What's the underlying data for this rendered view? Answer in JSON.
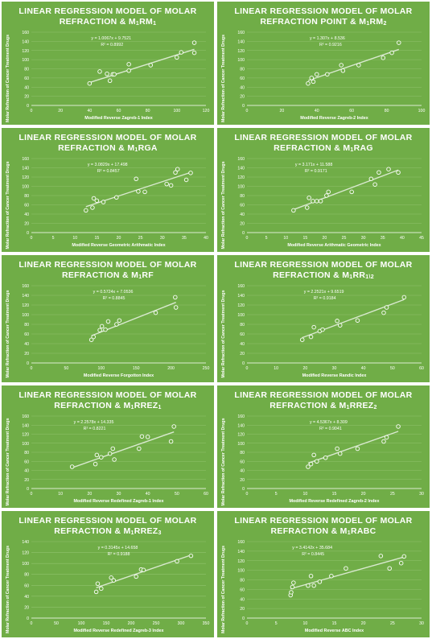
{
  "chart_data": [
    {
      "type": "scatter",
      "title": "LINEAR REGRESSION MODEL OF MOLAR REFRACTION & M₁RM₁",
      "title_lines": [
        [
          "LINEAR REGRESSION MODEL OF MOLAR",
          ""
        ],
        [
          "REFRACTION & M",
          "1",
          "RM",
          "1"
        ]
      ],
      "xlabel": "Modified Reverse Zagreb-1 Index",
      "ylabel": "Molar Refraction of Cancer Treatment Drugs",
      "xlim": [
        0,
        120
      ],
      "xticks": [
        0,
        20,
        40,
        60,
        80,
        100,
        120
      ],
      "ylim": [
        0,
        160
      ],
      "yticks": [
        0,
        20,
        40,
        60,
        80,
        100,
        120,
        140,
        160
      ],
      "equation": "y = 1.0067x + 9.7521",
      "r2": "R² = 0.8992",
      "slope": 1.0067,
      "intercept": 9.7521,
      "grid": true,
      "x": [
        40,
        47,
        52,
        54,
        56,
        57,
        67,
        67,
        82,
        100,
        103,
        112,
        112
      ],
      "y": [
        48,
        74,
        69,
        54,
        68,
        68,
        90,
        76,
        88,
        105,
        116,
        137,
        115
      ]
    },
    {
      "type": "scatter",
      "title": "LINEAR REGRESSION MODEL OF MOLAR REFRACTION POINT & M₁RM₂",
      "title_lines": [
        [
          "LINEAR REGRESSION MODEL OF MOLAR"
        ],
        [
          "REFRACTION POINT & M",
          "1",
          "RM",
          "2"
        ]
      ],
      "xlabel": "Modified Reverse Zagreb-2 Index",
      "ylabel": "Molar Refraction of Cancer Treatment Drugs",
      "xlim": [
        0,
        100
      ],
      "xticks": [
        0,
        20,
        40,
        60,
        80,
        100
      ],
      "ylim": [
        0,
        160
      ],
      "yticks": [
        0,
        20,
        40,
        60,
        80,
        100,
        120,
        140,
        160
      ],
      "equation": "y = 1.307x + 8.536",
      "r2": "R² = 0.9216",
      "slope": 1.307,
      "intercept": 8.536,
      "grid": true,
      "x": [
        35,
        37,
        38,
        40,
        46,
        54,
        55,
        64,
        78,
        83,
        87
      ],
      "y": [
        48,
        60,
        52,
        68,
        68,
        88,
        76,
        88,
        104,
        115,
        137
      ]
    },
    {
      "type": "scatter",
      "title": "LINEAR REGRESSION MODEL OF MOLAR REFRACTION & M₁RGA",
      "title_lines": [
        [
          "LINEAR REGRESSION MODEL OF MOLAR"
        ],
        [
          "REFRACTION & M",
          "1",
          "RGA"
        ]
      ],
      "xlabel": "Modified Reverse Geometric Arithmatic Index",
      "ylabel": "Molar Refraction of Cancer Treatment Drugs",
      "xlim": [
        0,
        40
      ],
      "xticks": [
        0,
        5,
        10,
        15,
        20,
        25,
        30,
        35,
        40
      ],
      "ylim": [
        0,
        160
      ],
      "yticks": [
        0,
        20,
        40,
        60,
        80,
        100,
        120,
        140,
        160
      ],
      "equation": "y = 3.0829x + 17.498",
      "r2": "R² = 0.8457",
      "slope": 3.0829,
      "intercept": 17.498,
      "grid": true,
      "x": [
        12.5,
        14,
        14.3,
        15,
        16.5,
        19.5,
        24,
        24.5,
        26,
        31,
        32,
        33,
        33.5,
        35.5,
        36.5
      ],
      "y": [
        48,
        54,
        74,
        69,
        66,
        76,
        116,
        89,
        88,
        105,
        102,
        130,
        137,
        114,
        129
      ]
    },
    {
      "type": "scatter",
      "title": "LINEAR REGRESSION MODEL OF MOLAR REFRACTION & M₁RAG",
      "title_lines": [
        [
          "LINEAR REGRESSION MODEL OF MOLAR"
        ],
        [
          "REFRACTION & M",
          "1",
          "RAG"
        ]
      ],
      "xlabel": "Modified Reverse  Arithmatic Geometric Index",
      "ylabel": "Molar Refraction of Cancer Treatment Drugs",
      "xlim": [
        0,
        45
      ],
      "xticks": [
        0,
        5,
        10,
        15,
        20,
        25,
        30,
        35,
        40,
        45
      ],
      "ylim": [
        0,
        160
      ],
      "yticks": [
        0,
        20,
        40,
        60,
        80,
        100,
        120,
        140,
        160
      ],
      "equation": "y = 3.171x + 11.588",
      "r2": "R² = 0.9171",
      "slope": 3.171,
      "intercept": 11.588,
      "grid": true,
      "x": [
        12,
        15.5,
        16,
        17,
        18,
        19,
        20.5,
        21,
        27,
        32,
        33,
        34,
        36.5,
        39
      ],
      "y": [
        48,
        54,
        75,
        68,
        68,
        68,
        80,
        88,
        88,
        116,
        104,
        130,
        137,
        130
      ]
    },
    {
      "type": "scatter",
      "title": "LINEAR REGRESSION MODEL OF MOLAR REFRACTION & M₁RF",
      "title_lines": [
        [
          "LINEAR REGRESSION MODEL OF MOLAR"
        ],
        [
          "REFRACTION & M",
          "1",
          "RF"
        ]
      ],
      "xlabel": "Modified Reverse Forgotton Index",
      "ylabel": "Molar Refraction of Cancer Treatment Drugs",
      "xlim": [
        0,
        250
      ],
      "xticks": [
        0,
        50,
        100,
        150,
        200,
        250
      ],
      "ylim": [
        0,
        160
      ],
      "yticks": [
        0,
        20,
        40,
        60,
        80,
        100,
        120,
        140,
        160
      ],
      "equation": "y = 0.5724x + 7.0536",
      "r2": "R² = 0.8845",
      "slope": 0.5724,
      "intercept": 7.0536,
      "grid": true,
      "x": [
        86,
        89,
        98,
        101,
        106,
        110,
        122,
        126,
        178,
        206,
        207
      ],
      "y": [
        48,
        54,
        68,
        76,
        69,
        86,
        80,
        88,
        104,
        136,
        115
      ]
    },
    {
      "type": "scatter",
      "title": "LINEAR REGRESSION MODEL OF MOLAR REFRACTION & M₁RR1\\2",
      "title_lines": [
        [
          "LINEAR REGRESSION MODEL OF MOLAR"
        ],
        [
          "REFRACTION & M",
          "1",
          "RR",
          "1\\2"
        ]
      ],
      "xlabel": "Modified Reverse Randic Index",
      "ylabel": "Molar Refraction of Cancer Treatment Drugs",
      "xlim": [
        0,
        60
      ],
      "xticks": [
        0,
        10,
        20,
        30,
        40,
        50,
        60
      ],
      "ylim": [
        0,
        160
      ],
      "yticks": [
        0,
        20,
        40,
        60,
        80,
        100,
        120,
        140,
        160
      ],
      "equation": "y = 2.2521x + 9.6519",
      "r2": "R² = 0.9184",
      "slope": 2.2521,
      "intercept": 9.6519,
      "grid": true,
      "x": [
        19,
        22,
        23,
        25,
        26,
        31,
        32,
        38,
        47,
        48,
        54
      ],
      "y": [
        48,
        54,
        74,
        66,
        69,
        87,
        78,
        88,
        104,
        115,
        136
      ]
    },
    {
      "type": "scatter",
      "title": "LINEAR REGRESSION MODEL OF MOLAR REFRACTION & M₁RREZ₁",
      "title_lines": [
        [
          "LINEAR REGRESSION MODEL OF MOLAR"
        ],
        [
          "REFRACTION & M",
          "1",
          "RREZ",
          "1"
        ]
      ],
      "xlabel": "Modified Reverse Redefined Zagreb-1 Index",
      "ylabel": "Molar Refraction of Cancer Treatment Drugs",
      "xlim": [
        0,
        60
      ],
      "xticks": [
        0,
        10,
        20,
        30,
        40,
        50,
        60
      ],
      "ylim": [
        0,
        160
      ],
      "yticks": [
        0,
        20,
        40,
        60,
        80,
        100,
        120,
        140,
        160
      ],
      "equation": "y = 2.2578x + 14.335",
      "r2": "R² = 0.8221",
      "slope": 2.2578,
      "intercept": 14.335,
      "grid": true,
      "x": [
        14,
        22,
        22.5,
        24,
        27,
        28,
        28.5,
        37,
        38,
        40,
        48,
        49
      ],
      "y": [
        48,
        54,
        74,
        69,
        77,
        88,
        64,
        88,
        115,
        114,
        104,
        137
      ]
    },
    {
      "type": "scatter",
      "title": "LINEAR REGRESSION MODEL OF MOLAR REFRACTION & M₁RREZ₂",
      "title_lines": [
        [
          "LINEAR REGRESSION MODEL OF MOLAR"
        ],
        [
          "REFRACTION & M",
          "1",
          "RREZ",
          "2"
        ]
      ],
      "xlabel": "Modified Reverse Redefined Zagreb-2 Index",
      "ylabel": "Molar Refraction of Cancer Treatment Drugs",
      "xlim": [
        0,
        30
      ],
      "xticks": [
        0,
        5,
        10,
        15,
        20,
        25,
        30
      ],
      "ylim": [
        0,
        160
      ],
      "yticks": [
        0,
        20,
        40,
        60,
        80,
        100,
        120,
        140,
        160
      ],
      "equation": "y = 4.5367x + 8.309",
      "r2": "R² = 0.9041",
      "slope": 4.5367,
      "intercept": 8.309,
      "grid": true,
      "x": [
        10.5,
        11,
        11.5,
        12,
        13.5,
        15.5,
        16,
        19,
        23.5,
        24,
        26
      ],
      "y": [
        48,
        54,
        74,
        60,
        68,
        88,
        77,
        88,
        104,
        113,
        137
      ]
    },
    {
      "type": "scatter",
      "title": "LINEAR REGRESSION MODEL OF MOLAR REFRACTION & M₁RREZ₃",
      "title_lines": [
        [
          "LINEAR REGRESSION MODEL OF MOLAR"
        ],
        [
          "REFRACTION & M",
          "1",
          "RREZ",
          "3"
        ]
      ],
      "xlabel": "Modified Reverse Redefined Zagreb-3 Index",
      "ylabel": "Molar Refraction of Cancer Treatment Drugs",
      "xlim": [
        0,
        350
      ],
      "xticks": [
        0,
        50,
        100,
        150,
        200,
        250,
        300,
        350
      ],
      "ylim": [
        0,
        140
      ],
      "yticks": [
        0,
        20,
        40,
        60,
        80,
        100,
        120,
        140
      ],
      "equation": "y = 0.3145x + 14.658",
      "r2": "R² = 0.9188",
      "slope": 0.3145,
      "intercept": 14.658,
      "grid": true,
      "x": [
        130,
        133,
        140,
        160,
        165,
        210,
        220,
        225,
        292,
        320
      ],
      "y": [
        48,
        63,
        54,
        74,
        69,
        76,
        89,
        88,
        104,
        114
      ]
    },
    {
      "type": "scatter",
      "title": "LINEAR REGRESSION MODEL OF MOLAR REFRACTION & M₁RABC",
      "title_lines": [
        [
          "LINEAR REGRESSION MODEL OF MOLAR"
        ],
        [
          "REFRACTION & M",
          "1",
          "RABC"
        ]
      ],
      "xlabel": "Modified Reverse ABC Index",
      "ylabel": "Molar Refraction of Cancer Treatment Drugs",
      "xlim": [
        0,
        30
      ],
      "xticks": [
        0,
        5,
        10,
        15,
        20,
        25,
        30
      ],
      "ylim": [
        0,
        160
      ],
      "yticks": [
        0,
        20,
        40,
        60,
        80,
        100,
        120,
        140,
        160
      ],
      "equation": "y = 3.4142x + 35.684",
      "r2": "R² = 0.8445",
      "slope": 3.4142,
      "intercept": 35.684,
      "grid": true,
      "x": [
        7.5,
        7.6,
        7.8,
        8,
        10.5,
        11,
        11.5,
        12.5,
        14.5,
        17,
        23,
        24.5,
        26.5,
        27
      ],
      "y": [
        48,
        54,
        65,
        74,
        68,
        88,
        68,
        76,
        88,
        104,
        130,
        104,
        115,
        129
      ]
    }
  ],
  "colors": {
    "panel_background": "#70ad47",
    "foreground": "#ffffff",
    "gridline": "#8fc26c",
    "marker_fill": "#70ad47",
    "trendline": "#d9e9cf"
  }
}
